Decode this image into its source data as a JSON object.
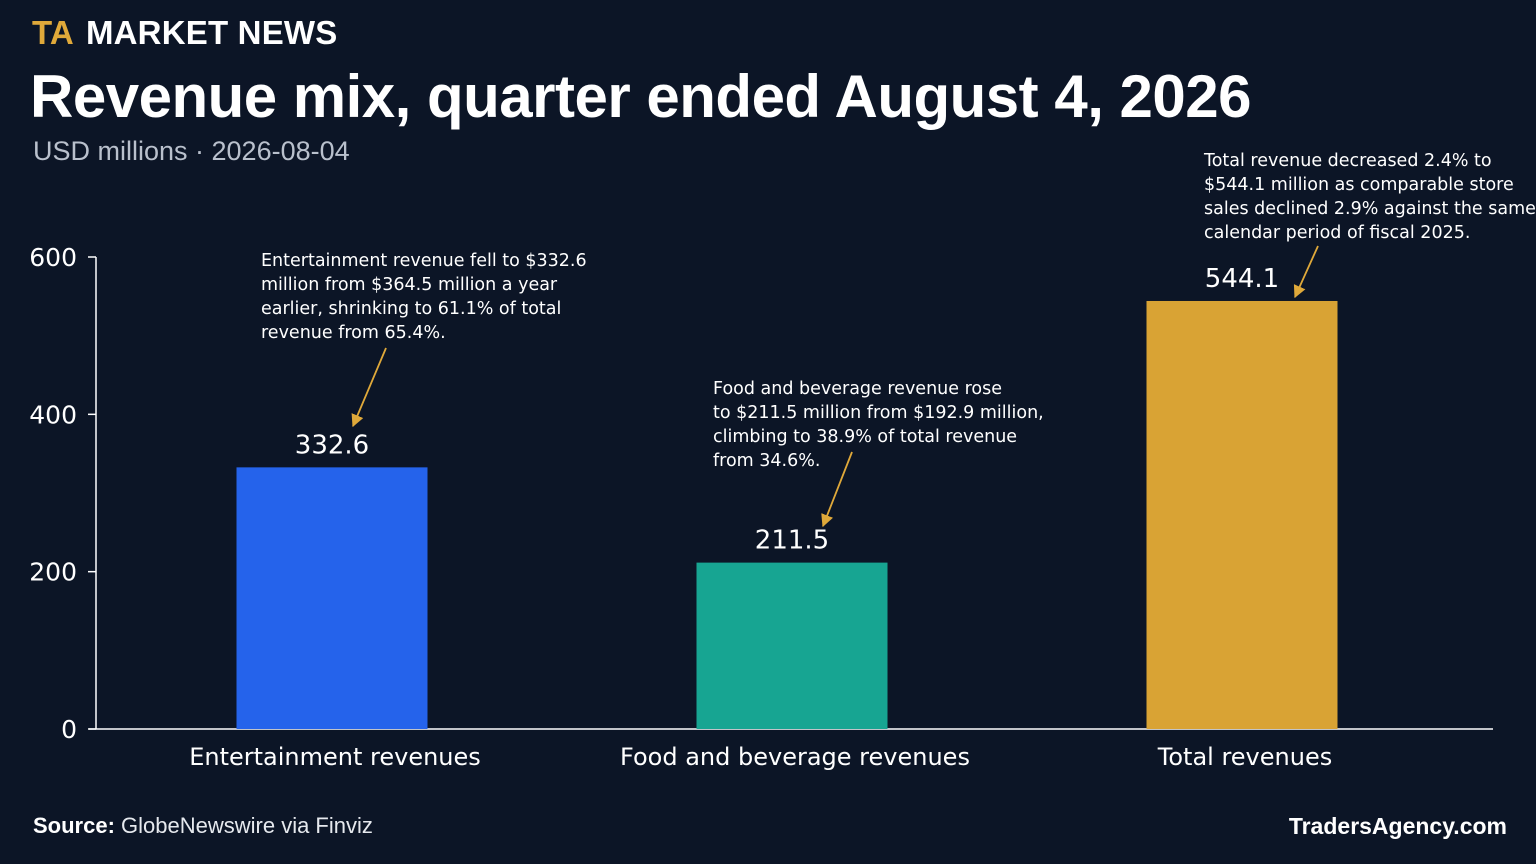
{
  "header": {
    "brand_mark": "TA",
    "brand_name": "MARKET NEWS",
    "title": "Revenue mix, quarter ended August 4, 2026",
    "subtitle": "USD millions · 2026-08-04"
  },
  "footer": {
    "source_label": "Source:",
    "source_text": " GlobeNewswire via Finviz",
    "site": "TradersAgency.com"
  },
  "colors": {
    "background": "#0c1526",
    "brand_accent": "#e0a93a",
    "annotation_arrow": "#e0a93a"
  },
  "chart_data": {
    "type": "bar",
    "categories": [
      "Entertainment revenues",
      "Food and beverage revenues",
      "Total revenues"
    ],
    "values": [
      332.6,
      211.5,
      544.1
    ],
    "value_labels": [
      "332.6",
      "211.5",
      "544.1"
    ],
    "colors": [
      "#2563eb",
      "#17a592",
      "#d9a334"
    ],
    "ylim": [
      0,
      600
    ],
    "yticks": [
      0,
      200,
      400,
      600
    ],
    "grid": false,
    "annotations": [
      {
        "category": "Entertainment revenues",
        "lines": [
          "Entertainment revenue fell to $332.6",
          "million from $364.5 million a year",
          "earlier, shrinking to 61.1% of total",
          "revenue from 65.4%."
        ]
      },
      {
        "category": "Food and beverage revenues",
        "lines": [
          "Food and beverage revenue rose",
          "to $211.5 million from $192.9 million,",
          "climbing to 38.9% of total revenue",
          "from 34.6%."
        ]
      },
      {
        "category": "Total revenues",
        "lines": [
          "Total revenue decreased 2.4% to",
          "$544.1 million as comparable store",
          "sales declined 2.9% against the same",
          "calendar period of fiscal 2025."
        ]
      }
    ]
  }
}
